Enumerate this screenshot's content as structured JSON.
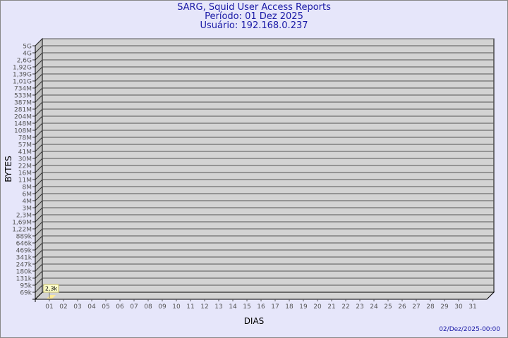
{
  "title": "SARG, Squid User Access Reports",
  "period": "Período: 01 Dez 2025",
  "user": "Usuário: 192.168.0.237",
  "footer": "02/Dez/2025-00:00",
  "colors": {
    "background": "#e6e6fa",
    "plot": "#d3d3d3",
    "bar": "#ffeb99",
    "title": "#1a1aa6"
  },
  "chart_data": {
    "type": "bar",
    "xlabel": "DIAS",
    "ylabel": "BYTES",
    "y_scale": "log",
    "grid": true,
    "y_ticks": [
      "5G",
      "4G",
      "2,6G",
      "1,92G",
      "1,39G",
      "1,01G",
      "734M",
      "533M",
      "387M",
      "281M",
      "204M",
      "148M",
      "108M",
      "78M",
      "57M",
      "41M",
      "30M",
      "22M",
      "16M",
      "11M",
      "8M",
      "6M",
      "4M",
      "3M",
      "2,3M",
      "1,69M",
      "1,22M",
      "889k",
      "646k",
      "469k",
      "341k",
      "247k",
      "180k",
      "131k",
      "95k",
      "69k"
    ],
    "categories": [
      "01",
      "02",
      "03",
      "04",
      "05",
      "06",
      "07",
      "08",
      "09",
      "10",
      "11",
      "12",
      "13",
      "14",
      "15",
      "16",
      "17",
      "18",
      "19",
      "20",
      "21",
      "22",
      "23",
      "24",
      "25",
      "26",
      "27",
      "28",
      "29",
      "30",
      "31"
    ],
    "values": [
      {
        "category": "01",
        "label": "2,3k"
      }
    ]
  }
}
